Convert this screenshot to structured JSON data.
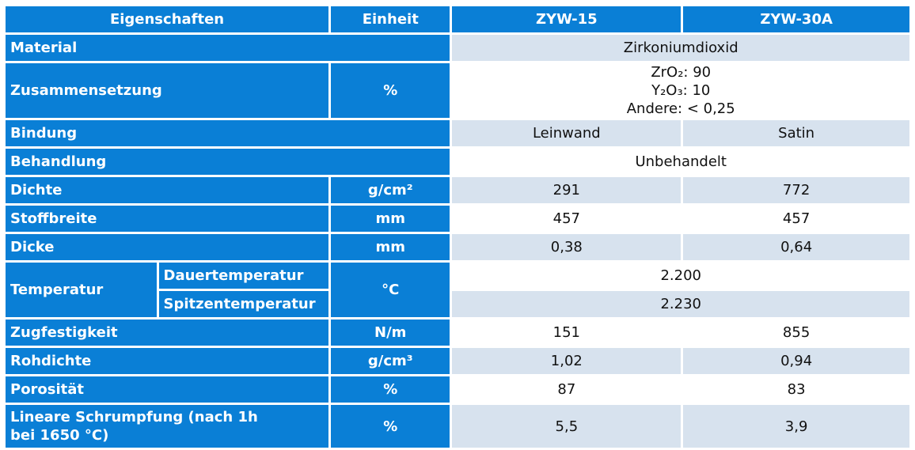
{
  "header": {
    "properties": "Eigenschaften",
    "unit": "Einheit",
    "col1": "ZYW-15",
    "col2": "ZYW-30A"
  },
  "rows": {
    "material": {
      "label": "Material",
      "value": "Zirkoniumdioxid"
    },
    "composition": {
      "label": "Zusammensetzung",
      "unit": "%",
      "lines": [
        "ZrO₂: 90",
        "Y₂O₃: 10",
        "Andere: < 0,25"
      ]
    },
    "binding": {
      "label": "Bindung",
      "v1": "Leinwand",
      "v2": "Satin"
    },
    "treatment": {
      "label": "Behandlung",
      "value": "Unbehandelt"
    },
    "density": {
      "label": "Dichte",
      "unit": "g/cm²",
      "v1": "291",
      "v2": "772"
    },
    "width": {
      "label": "Stoffbreite",
      "unit": "mm",
      "v1": "457",
      "v2": "457"
    },
    "thickness": {
      "label": "Dicke",
      "unit": "mm",
      "v1": "0,38",
      "v2": "0,64"
    },
    "temperature": {
      "label": "Temperatur",
      "unit": "°C",
      "continuous_label": "Dauertemperatur",
      "continuous_value": "2.200",
      "peak_label": "Spitzentemperatur",
      "peak_value": "2.230"
    },
    "tensile": {
      "label": "Zugfestigkeit",
      "unit": "N/m",
      "v1": "151",
      "v2": "855"
    },
    "bulk_density": {
      "label": "Rohdichte",
      "unit": "g/cm³",
      "v1": "1,02",
      "v2": "0,94"
    },
    "porosity": {
      "label": "Porosität",
      "unit": "%",
      "v1": "87",
      "v2": "83"
    },
    "shrinkage": {
      "label_line1": "Lineare Schrumpfung (nach 1h",
      "label_line2": "bei 1650 °C)",
      "unit": "%",
      "v1": "5,5",
      "v2": "3,9"
    }
  }
}
